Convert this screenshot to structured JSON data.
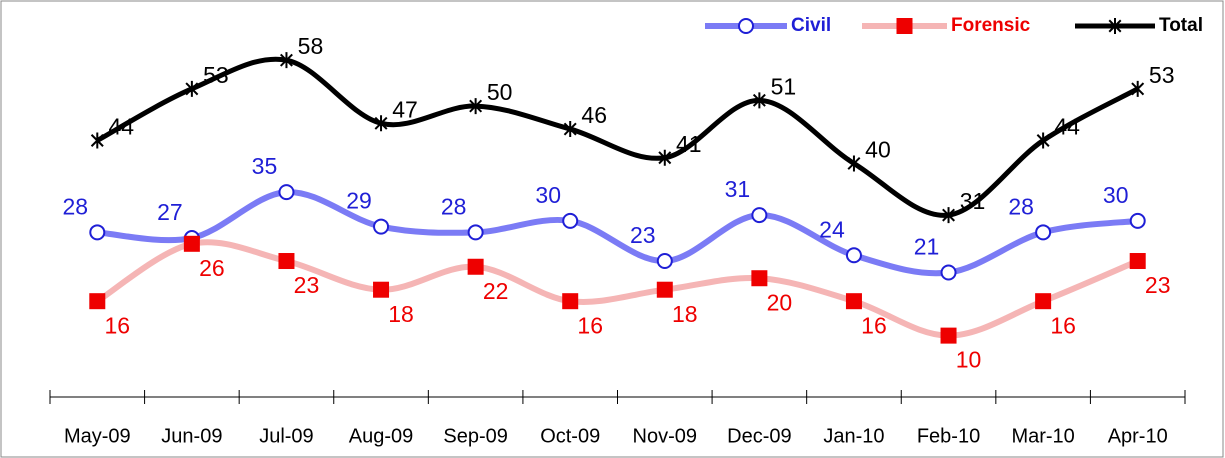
{
  "chart_data": {
    "type": "line",
    "categories": [
      "May-09",
      "Jun-09",
      "Jul-09",
      "Aug-09",
      "Sep-09",
      "Oct-09",
      "Nov-09",
      "Dec-09",
      "Jan-10",
      "Feb-10",
      "Mar-10",
      "Apr-10"
    ],
    "series": [
      {
        "name": "Civil",
        "color": "#7b7bf5",
        "marker": "circle",
        "marker_color": "#1f1fd6",
        "values": [
          28,
          27,
          35,
          29,
          28,
          30,
          23,
          31,
          24,
          21,
          28,
          30
        ]
      },
      {
        "name": "Forensic",
        "color": "#f5b5b5",
        "marker": "square",
        "marker_color": "#ee0000",
        "values": [
          16,
          26,
          23,
          18,
          22,
          16,
          18,
          20,
          16,
          10,
          16,
          23
        ]
      },
      {
        "name": "Total",
        "color": "#000000",
        "marker": "star",
        "marker_color": "#000000",
        "values": [
          44,
          53,
          58,
          47,
          50,
          46,
          41,
          51,
          40,
          31,
          44,
          53
        ]
      }
    ],
    "ylim": [
      0,
      65
    ],
    "legend": "top-right",
    "smooth": true
  }
}
